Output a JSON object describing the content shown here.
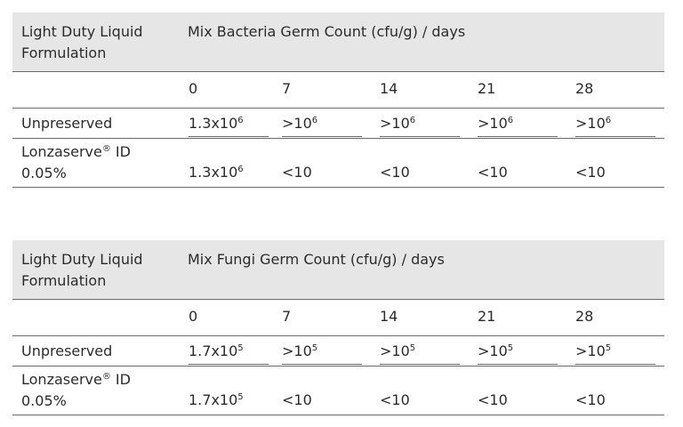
{
  "tables": [
    {
      "formulation_label": "Light Duty Liquid Formulation",
      "measure_label": "Mix Bacteria Germ Count (cfu/g) / days",
      "days": [
        "0",
        "7",
        "14",
        "21",
        "28"
      ],
      "rows": [
        {
          "label": "Unpreserved",
          "values": [
            {
              "base": "1.3x10",
              "exp": "6"
            },
            {
              "base": ">10",
              "exp": "6"
            },
            {
              "base": ">10",
              "exp": "6"
            },
            {
              "base": ">10",
              "exp": "6"
            },
            {
              "base": ">10",
              "exp": "6"
            }
          ]
        },
        {
          "label_name": "Lonzaserve",
          "label_mark": "®",
          "label_suffix": " ID",
          "label_line2": "0.05%",
          "values": [
            {
              "base": "1.3x10",
              "exp": "6"
            },
            {
              "base": "<10",
              "exp": ""
            },
            {
              "base": "<10",
              "exp": ""
            },
            {
              "base": "<10",
              "exp": ""
            },
            {
              "base": "<10",
              "exp": ""
            }
          ]
        }
      ]
    },
    {
      "formulation_label": "Light Duty Liquid Formulation",
      "measure_label": "Mix Fungi Germ Count (cfu/g) / days",
      "days": [
        "0",
        "7",
        "14",
        "21",
        "28"
      ],
      "rows": [
        {
          "label": "Unpreserved",
          "values": [
            {
              "base": "1.7x10",
              "exp": "5"
            },
            {
              "base": ">10",
              "exp": "5"
            },
            {
              "base": ">10",
              "exp": "5"
            },
            {
              "base": ">10",
              "exp": "5"
            },
            {
              "base": ">10",
              "exp": "5"
            }
          ]
        },
        {
          "label_name": "Lonzaserve",
          "label_mark": "®",
          "label_suffix": " ID",
          "label_line2": "0.05%",
          "values": [
            {
              "base": "1.7x10",
              "exp": "5"
            },
            {
              "base": "<10",
              "exp": ""
            },
            {
              "base": "<10",
              "exp": ""
            },
            {
              "base": "<10",
              "exp": ""
            },
            {
              "base": "<10",
              "exp": ""
            }
          ]
        }
      ]
    }
  ]
}
